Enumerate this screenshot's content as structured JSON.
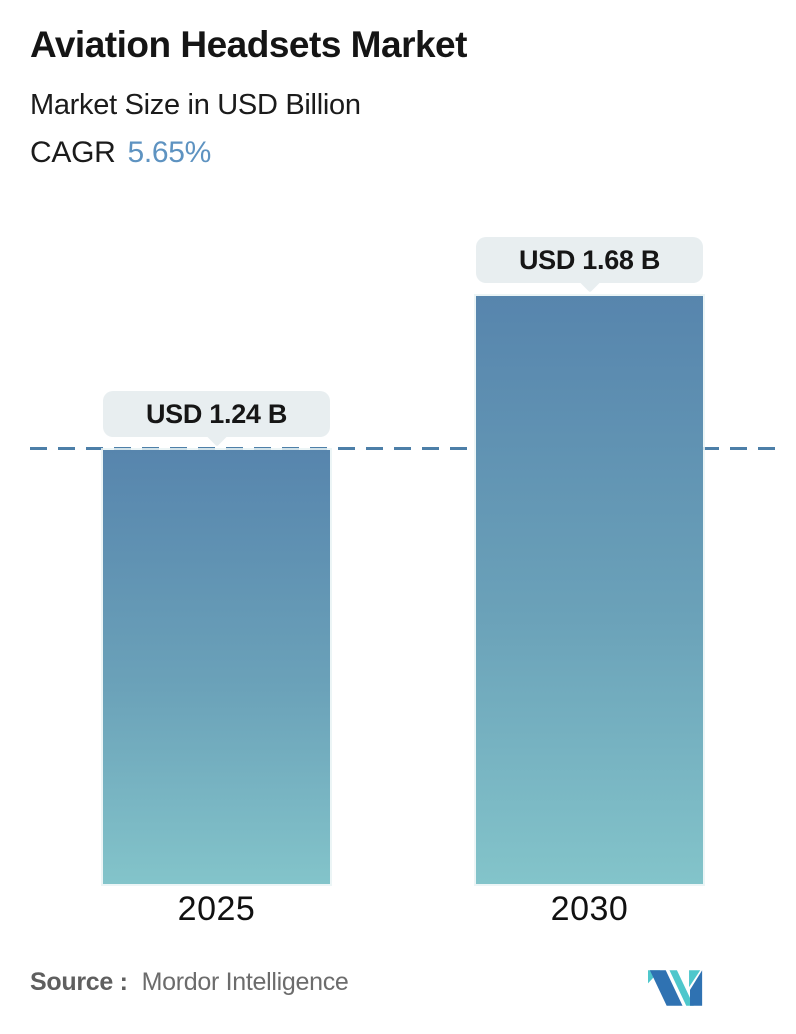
{
  "header": {
    "title": "Aviation Headsets Market",
    "subtitle": "Market Size in USD Billion",
    "cagr_label": "CAGR",
    "cagr_value": "5.65%"
  },
  "chart_data": {
    "type": "bar",
    "categories": [
      "2025",
      "2030"
    ],
    "values": [
      1.24,
      1.68
    ],
    "value_labels": [
      "USD 1.24 B",
      "USD 1.68 B"
    ],
    "title": "Aviation Headsets Market",
    "ylabel": "Market Size in USD Billion",
    "cagr": "5.65%",
    "ylim": [
      0,
      1.9
    ],
    "legend": "none",
    "grid": "single horizontal dashed guide line at first bar's value (1.24)",
    "layout": "two vertical gradient bars with value callout bubbles above each bar",
    "colors": {
      "bar_gradient_top": "#5785ad",
      "bar_gradient_bottom": "#83c4ca",
      "dash_line": "#4d7fa8",
      "tooltip_background": "#e8eef0",
      "accent_blue": "#5e93c1",
      "text_dark": "#161616",
      "source_gray": "#6c6c6c"
    }
  },
  "footer": {
    "source_label": "Source :",
    "source_value": "Mordor Intelligence",
    "logo": "mordor-intelligence-logo",
    "logo_colors": {
      "blue": "#2f72b2",
      "teal": "#4ec7cc"
    }
  }
}
